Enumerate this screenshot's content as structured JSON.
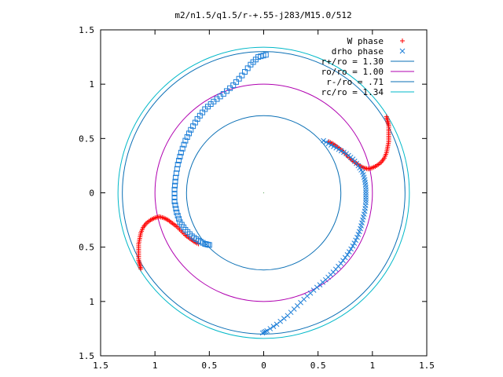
{
  "chart_data": {
    "type": "scatter",
    "title": "m2/n1.5/q1.5/r-+.55-j283/M15.0/512",
    "xlabel": "",
    "ylabel": "",
    "xlim": [
      -1.5,
      1.5
    ],
    "ylim": [
      -1.5,
      1.5
    ],
    "x_tick_values": [
      -1.5,
      -1,
      -0.5,
      0,
      0.5,
      1,
      1.5
    ],
    "x_tick_labels": [
      "1.5",
      "1",
      "0.5",
      "0",
      "0.5",
      "1",
      "1.5"
    ],
    "y_tick_values": [
      1.5,
      1,
      0.5,
      0,
      -0.5,
      -1,
      -1.5
    ],
    "y_tick_labels": [
      "1.5",
      "1",
      "0.5",
      "0",
      "0.5",
      "1",
      "1.5"
    ],
    "grid": false,
    "legend_position": "top-right",
    "circles": [
      {
        "name": "r+/ro = 1.30",
        "radius": 1.3,
        "color": "#0a6fb5"
      },
      {
        "name": "ro/ro = 1.00",
        "radius": 1.0,
        "color": "#b000b0"
      },
      {
        "name": "r-/ro = .71",
        "radius": 0.71,
        "color": "#0a6fb5"
      },
      {
        "name": "rc/ro = 1.34",
        "radius": 1.34,
        "color": "#00b8c8"
      }
    ],
    "series": [
      {
        "name": "W phase",
        "marker": "+",
        "color": "#ff0000",
        "arms": [
          [
            [
              1.13,
              0.7
            ],
            [
              1.14,
              0.66
            ],
            [
              1.15,
              0.62
            ],
            [
              1.15,
              0.57
            ],
            [
              1.15,
              0.52
            ],
            [
              1.15,
              0.47
            ],
            [
              1.14,
              0.42
            ],
            [
              1.13,
              0.37
            ],
            [
              1.11,
              0.32
            ],
            [
              1.08,
              0.28
            ],
            [
              1.04,
              0.25
            ],
            [
              1.0,
              0.23
            ],
            [
              0.96,
              0.22
            ],
            [
              0.92,
              0.23
            ],
            [
              0.88,
              0.25
            ],
            [
              0.84,
              0.28
            ],
            [
              0.8,
              0.31
            ],
            [
              0.76,
              0.35
            ],
            [
              0.72,
              0.39
            ],
            [
              0.68,
              0.42
            ],
            [
              0.64,
              0.45
            ],
            [
              0.6,
              0.47
            ]
          ],
          [
            [
              -1.13,
              -0.7
            ],
            [
              -1.14,
              -0.66
            ],
            [
              -1.15,
              -0.62
            ],
            [
              -1.15,
              -0.57
            ],
            [
              -1.15,
              -0.52
            ],
            [
              -1.15,
              -0.47
            ],
            [
              -1.14,
              -0.42
            ],
            [
              -1.13,
              -0.37
            ],
            [
              -1.11,
              -0.32
            ],
            [
              -1.08,
              -0.28
            ],
            [
              -1.04,
              -0.25
            ],
            [
              -1.0,
              -0.23
            ],
            [
              -0.96,
              -0.22
            ],
            [
              -0.92,
              -0.23
            ],
            [
              -0.88,
              -0.25
            ],
            [
              -0.84,
              -0.28
            ],
            [
              -0.8,
              -0.31
            ],
            [
              -0.76,
              -0.35
            ],
            [
              -0.72,
              -0.39
            ],
            [
              -0.68,
              -0.42
            ],
            [
              -0.64,
              -0.45
            ],
            [
              -0.6,
              -0.47
            ]
          ]
        ]
      },
      {
        "name": "drho phase",
        "marker": "x",
        "color": "#1e7fd8",
        "arms": [
          [
            [
              0.55,
              0.48
            ],
            [
              0.62,
              0.44
            ],
            [
              0.69,
              0.4
            ],
            [
              0.76,
              0.36
            ],
            [
              0.82,
              0.31
            ],
            [
              0.87,
              0.25
            ],
            [
              0.91,
              0.19
            ],
            [
              0.93,
              0.12
            ],
            [
              0.94,
              0.05
            ],
            [
              0.94,
              -0.02
            ],
            [
              0.94,
              -0.09
            ],
            [
              0.93,
              -0.17
            ],
            [
              0.91,
              -0.25
            ],
            [
              0.89,
              -0.33
            ],
            [
              0.86,
              -0.41
            ],
            [
              0.82,
              -0.49
            ],
            [
              0.77,
              -0.57
            ],
            [
              0.71,
              -0.65
            ],
            [
              0.64,
              -0.73
            ],
            [
              0.57,
              -0.8
            ],
            [
              0.49,
              -0.87
            ],
            [
              0.4,
              -0.95
            ],
            [
              0.31,
              -1.04
            ],
            [
              0.22,
              -1.13
            ],
            [
              0.12,
              -1.21
            ],
            [
              0.03,
              -1.27
            ],
            [
              -0.01,
              -1.29
            ]
          ],
          [
            [
              0.02,
              1.27
            ],
            [
              -0.05,
              1.25
            ],
            [
              -0.12,
              1.18
            ],
            [
              -0.2,
              1.08
            ],
            [
              -0.28,
              0.99
            ],
            [
              -0.37,
              0.91
            ],
            [
              -0.46,
              0.84
            ],
            [
              -0.54,
              0.77
            ],
            [
              -0.61,
              0.68
            ],
            [
              -0.67,
              0.58
            ],
            [
              -0.72,
              0.48
            ],
            [
              -0.76,
              0.37
            ],
            [
              -0.79,
              0.26
            ],
            [
              -0.81,
              0.14
            ],
            [
              -0.82,
              0.03
            ],
            [
              -0.82,
              -0.08
            ],
            [
              -0.8,
              -0.18
            ],
            [
              -0.77,
              -0.27
            ],
            [
              -0.72,
              -0.34
            ],
            [
              -0.66,
              -0.4
            ],
            [
              -0.6,
              -0.44
            ],
            [
              -0.54,
              -0.47
            ],
            [
              -0.5,
              -0.48
            ]
          ]
        ]
      }
    ]
  }
}
